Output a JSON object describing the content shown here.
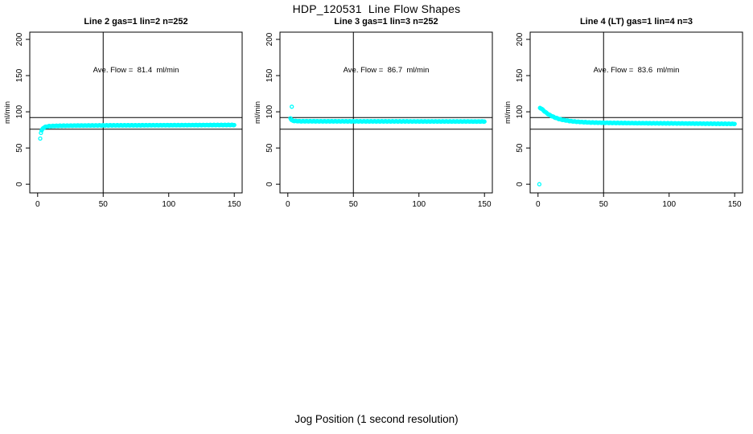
{
  "figure": {
    "title": "HDP_120531  Line Flow Shapes",
    "xlabel": "Jog Position (1 second resolution)"
  },
  "chart_data": [
    {
      "type": "scatter",
      "title": "Line 2 gas=1 lin=2 n=252",
      "ylabel": "ml/min",
      "annotation": "Ave. Flow =  81.4  ml/min",
      "ave_flow_ml_min": 81.4,
      "n": 252,
      "x_ticks": [
        0,
        50,
        100,
        150
      ],
      "y_ticks": [
        0,
        50,
        100,
        150,
        200
      ],
      "xlim": [
        -6,
        156
      ],
      "ylim": [
        -12,
        210
      ],
      "ref_hlines": [
        92,
        76
      ],
      "ref_vline": 50,
      "marker_color": "#00FFFF",
      "profile": [
        [
          2.5,
          71
        ],
        [
          3,
          74
        ],
        [
          3.5,
          75.5
        ],
        [
          4,
          77
        ],
        [
          5,
          78.5
        ],
        [
          6,
          79.2
        ],
        [
          8,
          80
        ],
        [
          10,
          80.3
        ],
        [
          15,
          80.6
        ],
        [
          20,
          80.8
        ],
        [
          30,
          81
        ],
        [
          40,
          81.1
        ],
        [
          60,
          81.3
        ],
        [
          80,
          81.4
        ],
        [
          100,
          81.5
        ],
        [
          120,
          81.6
        ],
        [
          150,
          81.8
        ]
      ],
      "outliers": [
        [
          2,
          63
        ]
      ]
    },
    {
      "type": "scatter",
      "title": "Line 3 gas=1 lin=3 n=252",
      "ylabel": "ml/min",
      "annotation": "Ave. Flow =  86.7  ml/min",
      "ave_flow_ml_min": 86.7,
      "n": 252,
      "x_ticks": [
        0,
        50,
        100,
        150
      ],
      "y_ticks": [
        0,
        50,
        100,
        150,
        200
      ],
      "xlim": [
        -6,
        156
      ],
      "ylim": [
        -12,
        210
      ],
      "ref_hlines": [
        92,
        76
      ],
      "ref_vline": 50,
      "marker_color": "#00FFFF",
      "profile": [
        [
          2,
          91.5
        ],
        [
          2.5,
          89.5
        ],
        [
          3,
          88.3
        ],
        [
          4,
          87.6
        ],
        [
          6,
          87.2
        ],
        [
          10,
          87
        ],
        [
          30,
          86.9
        ],
        [
          60,
          86.8
        ],
        [
          100,
          86.7
        ],
        [
          150,
          86.6
        ]
      ],
      "outliers": [
        [
          3,
          107
        ]
      ]
    },
    {
      "type": "scatter",
      "title": "Line 4 (LT) gas=1 lin=4 n=3",
      "ylabel": "ml/min",
      "annotation": "Ave. Flow =  83.6  ml/min",
      "ave_flow_ml_min": 83.6,
      "n": 3,
      "x_ticks": [
        0,
        50,
        100,
        150
      ],
      "y_ticks": [
        0,
        50,
        100,
        150,
        200
      ],
      "xlim": [
        -6,
        156
      ],
      "ylim": [
        -12,
        210
      ],
      "ref_hlines": [
        92,
        76
      ],
      "ref_vline": 50,
      "marker_color": "#00FFFF",
      "profile": [
        [
          1.5,
          105.5
        ],
        [
          2.5,
          104.5
        ],
        [
          3.5,
          103
        ],
        [
          5,
          100.5
        ],
        [
          6.5,
          98.3
        ],
        [
          8,
          96.5
        ],
        [
          10,
          94.5
        ],
        [
          12,
          92.8
        ],
        [
          14,
          91.3
        ],
        [
          16,
          90.2
        ],
        [
          18,
          89.2
        ],
        [
          21,
          88.2
        ],
        [
          24,
          87.3
        ],
        [
          28,
          86.5
        ],
        [
          32,
          86
        ],
        [
          38,
          85.4
        ],
        [
          45,
          85
        ],
        [
          55,
          84.7
        ],
        [
          70,
          84.4
        ],
        [
          85,
          84.2
        ],
        [
          100,
          84
        ],
        [
          115,
          83.8
        ],
        [
          130,
          83.6
        ],
        [
          150,
          83.3
        ]
      ],
      "outliers": [
        [
          1,
          0
        ]
      ]
    }
  ]
}
